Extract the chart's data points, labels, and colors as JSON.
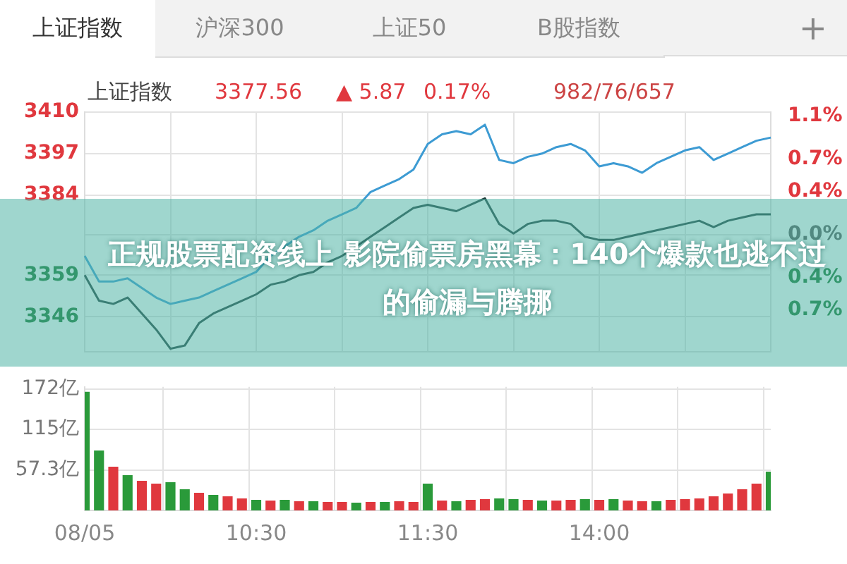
{
  "chart_data": [
    {
      "type": "line",
      "ylim": [
        3335,
        3410
      ],
      "yticks": [
        3410,
        3397,
        3384,
        {
          "value": 3371.7,
          "label": null
        },
        3359,
        3346
      ],
      "y2lim": [
        -1.088,
        1.136
      ],
      "y2ticks": [
        {
          "value": 1.1,
          "label": "1.1%"
        },
        {
          "value": 0.7,
          "label": "0.7%"
        },
        {
          "value": 0.4,
          "label": "0.4%"
        },
        {
          "value": 0,
          "label": "0.0%"
        },
        {
          "value": -0.4,
          "label": "0.4%"
        },
        {
          "value": -0.7,
          "label": "0.7%"
        }
      ],
      "categories": [
        null,
        null,
        null,
        null,
        null,
        null,
        null,
        null,
        null,
        null,
        null,
        null,
        null,
        null,
        null,
        null,
        null,
        null,
        null,
        null,
        null,
        null,
        null,
        null,
        null,
        null,
        null,
        null,
        null,
        null,
        null,
        null,
        null,
        null,
        null,
        null,
        null,
        null,
        null,
        null,
        null,
        null,
        null,
        null,
        null,
        null,
        null,
        null,
        null
      ],
      "tick_labels": "y",
      "grid": true,
      "marker": "none",
      "line_style": "solid",
      "series": [
        {
          "color": "#3d9bd3",
          "values": [
            3365,
            3357,
            3357,
            3358,
            3355,
            3352,
            3350,
            3351,
            3352,
            3354,
            3356,
            3358,
            3360,
            3365,
            3368,
            3371,
            3373,
            3376,
            3378,
            3380,
            3385,
            3387,
            3389,
            3392,
            3400,
            3403,
            3404,
            3403,
            3406,
            3395,
            3394,
            3396,
            3397,
            3399,
            3400,
            3398,
            3393,
            3394,
            3393,
            3391,
            3394,
            3396,
            3398,
            3399,
            3395,
            3397,
            3399,
            3401,
            3402
          ]
        },
        {
          "color": "#1f3d3a",
          "values": [
            3359,
            3351,
            3350,
            3352,
            3347,
            3342,
            3336,
            3337,
            3344,
            3347,
            3349,
            3351,
            3353,
            3356,
            3357,
            3359,
            3360,
            3363,
            3365,
            3368,
            3371,
            3374,
            3377,
            3380,
            3381,
            3380,
            3379,
            3381,
            3383,
            3375,
            3372,
            3375,
            3376,
            3376,
            3375,
            3371,
            3370,
            3370,
            3371,
            3372,
            3373,
            3374,
            3375,
            3376,
            3374,
            3376,
            3377,
            3378,
            3378
          ]
        }
      ],
      "annotations": [
        "上证指数",
        "沪深300",
        "上证50",
        "B股指数",
        "+",
        "上证指数",
        "3377.56",
        "▲ 5.87",
        "0.17%",
        "982/76/657",
        "正规股票配资线上   影院偷票房黑幕：140个爆款也逃不过的偷漏与腾挪"
      ]
    },
    {
      "type": "bar",
      "ylim": [
        0,
        175
      ],
      "yticks": [
        {
          "value": 57.3,
          "label": "57.3亿"
        },
        {
          "value": 115,
          "label": "115亿"
        },
        {
          "value": 172,
          "label": "172亿"
        }
      ],
      "categories": [
        "08/05",
        null,
        null,
        null,
        null,
        null,
        null,
        null,
        null,
        null,
        null,
        null,
        "10:30",
        null,
        null,
        null,
        null,
        null,
        null,
        null,
        null,
        null,
        null,
        null,
        "11:30",
        null,
        null,
        null,
        null,
        null,
        null,
        null,
        null,
        null,
        null,
        null,
        "14:00",
        null,
        null,
        null,
        null,
        null,
        null,
        null,
        null,
        null,
        null,
        null,
        null
      ],
      "grid": true,
      "values": [
        168,
        85,
        62,
        50,
        42,
        38,
        40,
        30,
        25,
        22,
        20,
        17,
        15,
        14,
        15,
        13,
        13,
        12,
        12,
        11,
        12,
        12,
        13,
        12,
        38,
        14,
        13,
        15,
        16,
        17,
        16,
        15,
        14,
        14,
        15,
        16,
        15,
        16,
        14,
        13,
        13,
        15,
        16,
        17,
        20,
        24,
        30,
        38,
        55
      ],
      "colors": [
        "#2a9a3a",
        "#2a9a3a",
        "#e0383e",
        "#2a9a3a",
        "#e0383e",
        "#e0383e",
        "#2a9a3a",
        "#2a9a3a",
        "#e0383e",
        "#2a9a3a",
        "#e0383e",
        "#e0383e",
        "#2a9a3a",
        "#e0383e",
        "#2a9a3a",
        "#e0383e",
        "#2a9a3a",
        "#e0383e",
        "#e0383e",
        "#2a9a3a",
        "#e0383e",
        "#2a9a3a",
        "#e0383e",
        "#e0383e",
        "#2a9a3a",
        "#e0383e",
        "#2a9a3a",
        "#e0383e",
        "#e0383e",
        "#2a9a3a",
        "#2a9a3a",
        "#e0383e",
        "#2a9a3a",
        "#e0383e",
        "#e0383e",
        "#2a9a3a",
        "#e0383e",
        "#2a9a3a",
        "#e0383e",
        "#e0383e",
        "#2a9a3a",
        "#e0383e",
        "#e0383e",
        "#e0383e",
        "#e0383e",
        "#e0383e",
        "#e0383e",
        "#e0383e",
        "#2a9a3a"
      ]
    }
  ]
}
